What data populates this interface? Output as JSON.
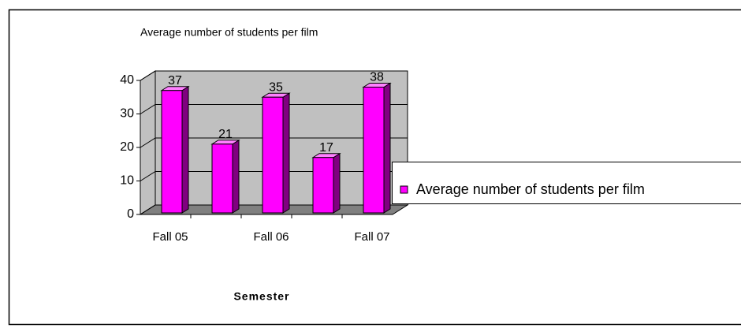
{
  "chart_data": {
    "type": "bar",
    "title": "Average number of students per film",
    "x_label": "Semester",
    "categories": [
      "Fall 05",
      null,
      "Fall 06",
      null,
      "Fall 07"
    ],
    "series": [
      {
        "name": "Average number of students per film",
        "color": "#ff00ff",
        "values": [
          37,
          21,
          35,
          17,
          38
        ]
      }
    ],
    "ylim": [
      0,
      40
    ],
    "yticks": [
      0,
      10,
      20,
      30,
      40
    ],
    "grid": true,
    "legend": "right"
  }
}
